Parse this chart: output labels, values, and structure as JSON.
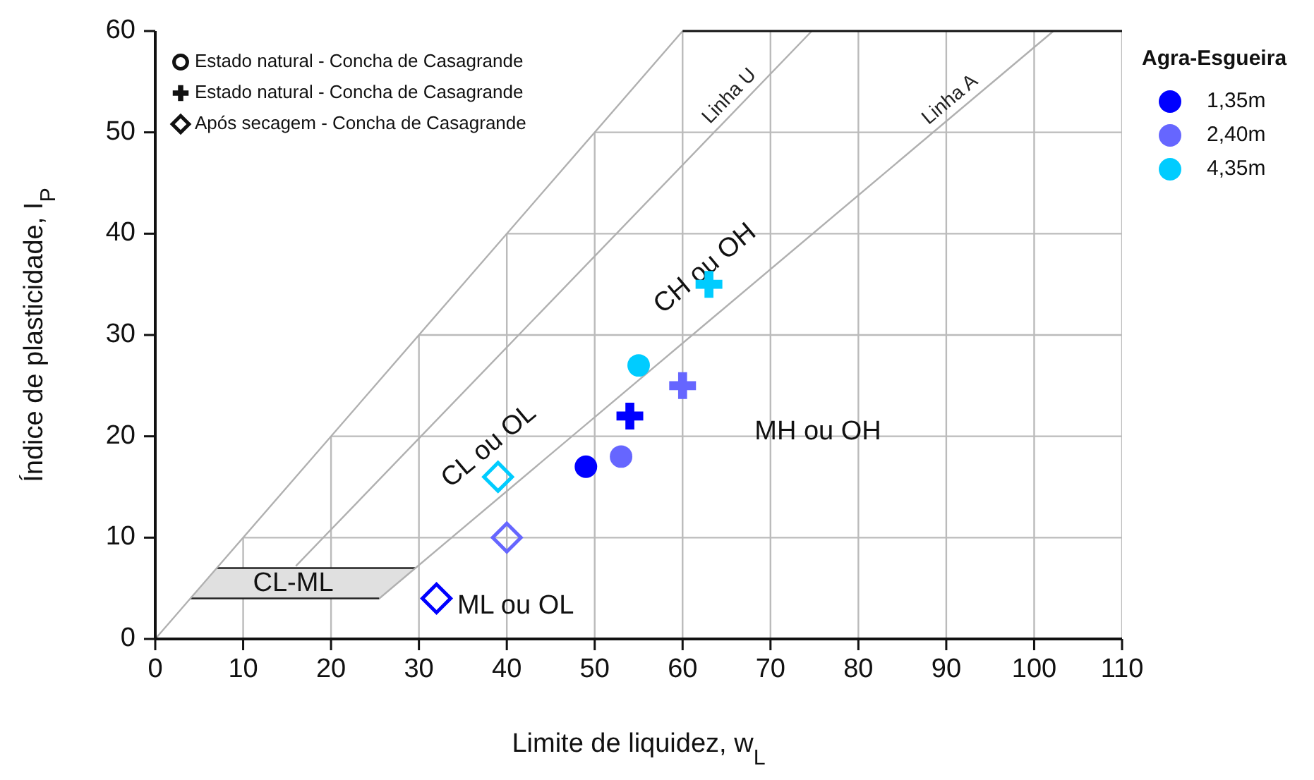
{
  "chart_data": {
    "type": "scatter",
    "xlabel": "Limite de liquidez, w$_{L}$",
    "ylabel": "Índice de plasticidade, I$_{P}$",
    "xlim": [
      0,
      110
    ],
    "ylim": [
      0,
      60
    ],
    "xticks": [
      0,
      10,
      20,
      30,
      40,
      50,
      60,
      70,
      80,
      90,
      100,
      110
    ],
    "yticks": [
      0,
      10,
      20,
      30,
      40,
      50,
      60
    ],
    "grid": true,
    "legend": "top right",
    "legend_title": "Agra-Esgueira",
    "series": [
      {
        "type": "line",
        "color": "#222222",
        "x": [
          4,
          25.5
        ],
        "values": [
          4,
          4
        ]
      },
      {
        "type": "line",
        "color": "#222222",
        "x": [
          7,
          29.6
        ],
        "values": [
          7,
          7
        ]
      },
      {
        "type": "line",
        "color": "#b0b0b0",
        "x": [
          0,
          60
        ],
        "values": [
          0,
          60
        ]
      },
      {
        "type": "line",
        "name": "Linha U",
        "color": "#b0b0b0",
        "x": [
          16,
          74.7
        ],
        "values": [
          7.2,
          60
        ]
      },
      {
        "type": "line",
        "name": "Linha A",
        "color": "#b0b0b0",
        "x": [
          25.5,
          102.2
        ],
        "values": [
          4,
          60
        ]
      },
      {
        "marker": "circle",
        "x": [
          49,
          53,
          55
        ],
        "values": [
          17,
          18,
          27
        ],
        "colors": [
          "#0000ff",
          "#6666ff",
          "#00ccff"
        ]
      },
      {
        "marker": "cross",
        "x": [
          54,
          60,
          63
        ],
        "values": [
          22,
          25,
          35
        ],
        "colors": [
          "#0000ff",
          "#6666ff",
          "#00ccff"
        ]
      },
      {
        "marker": "diamond",
        "x": [
          32,
          40,
          39
        ],
        "values": [
          4,
          10,
          16
        ],
        "colors": [
          "#0000ff",
          "#6666ff",
          "#00ccff"
        ]
      },
      {
        "name": "1,35m",
        "color": "#0000ff"
      },
      {
        "name": "2,40m",
        "color": "#6666ff"
      },
      {
        "name": "4,35m",
        "color": "#00ccff"
      }
    ],
    "annotations": [
      "CH ou OH",
      "CL ou OL",
      "MH ou OH",
      "ML ou OL",
      "CL-ML",
      "Estado natural - Concha de Casagrande",
      "Estado natural - Concha de Casagrande",
      "Após secagem - Concha de Casagrande"
    ]
  }
}
